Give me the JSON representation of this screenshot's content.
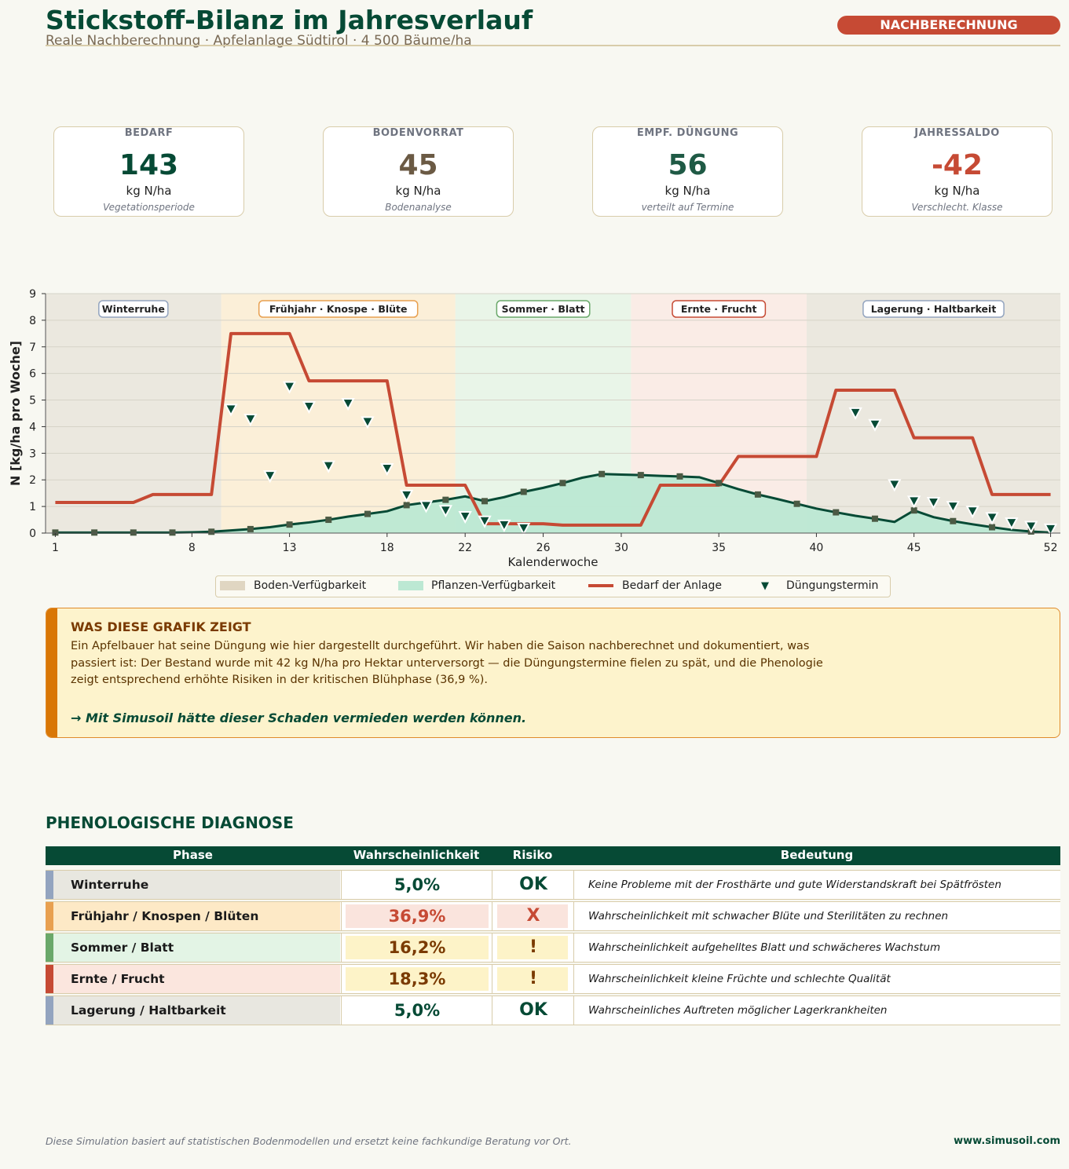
{
  "header": {
    "title": "Stickstoff-Bilanz im Jahresverlauf",
    "subtitle": "Reale Nachberechnung · Apfelanlage Südtirol · 4 500 Bäume/ha",
    "badge": "NACHBERECHNUNG"
  },
  "kpis": [
    {
      "label": "BEDARF",
      "value": "143",
      "unit": "kg N/ha",
      "note": "Vegetationsperiode",
      "color": "#064a35"
    },
    {
      "label": "BODENVORRAT",
      "value": "45",
      "unit": "kg N/ha",
      "note": "Bodenanalyse",
      "color": "#6b5a44"
    },
    {
      "label": "EMPF. DÜNGUNG",
      "value": "56",
      "unit": "kg N/ha",
      "note": "verteilt auf Termine",
      "color": "#1f5a45"
    },
    {
      "label": "JAHRESSALDO",
      "value": "-42",
      "unit": "kg N/ha",
      "note": "Verschlecht. Klasse",
      "color": "#c64a34"
    }
  ],
  "chart_data": {
    "type": "line",
    "xlabel": "Kalenderwoche",
    "ylabel": "N [kg/ha pro Woche]",
    "xlim": [
      1,
      52
    ],
    "ylim": [
      0,
      9
    ],
    "xticks": [
      1,
      8,
      13,
      18,
      22,
      26,
      30,
      35,
      40,
      45,
      52
    ],
    "yticks": [
      0,
      1,
      2,
      3,
      4,
      5,
      6,
      7,
      8,
      9
    ],
    "grid": true,
    "phases": [
      {
        "label": "Winterruhe",
        "from": 0.5,
        "to": 9.5,
        "fill": "#ebe8df",
        "border": "#93a4bf"
      },
      {
        "label": "Frühjahr · Knospe · Blüte",
        "from": 9.5,
        "to": 21.5,
        "fill": "#fbefd8",
        "border": "#e8a050"
      },
      {
        "label": "Sommer · Blatt",
        "from": 21.5,
        "to": 30.5,
        "fill": "#e9f5e8",
        "border": "#6aa86a"
      },
      {
        "label": "Ernte · Frucht",
        "from": 30.5,
        "to": 39.5,
        "fill": "#faece6",
        "border": "#c64a34"
      },
      {
        "label": "Lagerung · Haltbarkeit",
        "from": 39.5,
        "to": 52.5,
        "fill": "#ebe8df",
        "border": "#93a4bf"
      }
    ],
    "x": [
      1,
      2,
      3,
      4,
      5,
      6,
      7,
      8,
      9,
      10,
      11,
      12,
      13,
      14,
      15,
      16,
      17,
      18,
      19,
      20,
      21,
      22,
      23,
      24,
      25,
      26,
      27,
      28,
      29,
      30,
      31,
      32,
      33,
      34,
      35,
      36,
      37,
      38,
      39,
      40,
      41,
      42,
      43,
      44,
      45,
      46,
      47,
      48,
      49,
      50,
      51,
      52
    ],
    "series": [
      {
        "name": "Boden-Verfügbarkeit",
        "color": "#e0d6c2",
        "values": [
          0.02,
          0.02,
          0.02,
          0.02,
          0.02,
          0.02,
          0.02,
          0.03,
          0.05,
          0.1,
          0.15,
          0.22,
          0.32,
          0.4,
          0.5,
          0.62,
          0.72,
          0.82,
          1.05,
          1.15,
          1.25,
          1.38,
          1.2,
          1.35,
          1.55,
          1.7,
          1.88,
          2.08,
          2.22,
          2.2,
          2.18,
          2.15,
          2.13,
          2.1,
          1.88,
          1.65,
          1.45,
          1.28,
          1.1,
          0.92,
          0.78,
          0.65,
          0.54,
          0.42,
          0.85,
          0.6,
          0.45,
          0.33,
          0.22,
          0.12,
          0.06,
          0.02
        ]
      },
      {
        "name": "Pflanzen-Verfügbarkeit",
        "color": "#bce8d3",
        "values": [
          0.02,
          0.02,
          0.02,
          0.02,
          0.02,
          0.02,
          0.02,
          0.03,
          0.05,
          0.1,
          0.15,
          0.22,
          0.32,
          0.4,
          0.5,
          0.62,
          0.72,
          0.82,
          1.05,
          1.15,
          1.25,
          1.38,
          1.2,
          1.35,
          1.55,
          1.7,
          1.88,
          2.08,
          2.22,
          2.2,
          2.18,
          2.15,
          2.13,
          2.1,
          1.88,
          1.65,
          1.45,
          1.28,
          1.1,
          0.92,
          0.78,
          0.65,
          0.54,
          0.42,
          0.85,
          0.6,
          0.45,
          0.33,
          0.22,
          0.12,
          0.06,
          0.02
        ]
      },
      {
        "name": "Bedarf der Anlage",
        "color": "#c64a34",
        "values": [
          1.15,
          1.15,
          1.15,
          1.15,
          1.15,
          1.45,
          1.45,
          1.45,
          1.45,
          7.5,
          7.5,
          7.5,
          7.5,
          5.72,
          5.72,
          5.72,
          5.72,
          5.72,
          1.8,
          1.8,
          1.8,
          1.8,
          0.35,
          0.35,
          0.35,
          0.35,
          0.3,
          0.3,
          0.3,
          0.3,
          0.3,
          1.8,
          1.8,
          1.8,
          1.8,
          2.88,
          2.88,
          2.88,
          2.88,
          2.88,
          5.37,
          5.37,
          5.37,
          5.37,
          3.58,
          3.58,
          3.58,
          3.58,
          1.45,
          1.45,
          1.45,
          1.45
        ]
      },
      {
        "name": "Düngungstermin",
        "color": "#064a35",
        "marker": "triangle-down",
        "points": [
          [
            10,
            4.65
          ],
          [
            11,
            4.28
          ],
          [
            12,
            2.15
          ],
          [
            13,
            5.5
          ],
          [
            14,
            4.75
          ],
          [
            15,
            2.52
          ],
          [
            16,
            4.87
          ],
          [
            17,
            4.18
          ],
          [
            18,
            2.42
          ],
          [
            19,
            1.42
          ],
          [
            20,
            1.02
          ],
          [
            21,
            0.85
          ],
          [
            22,
            0.62
          ],
          [
            23,
            0.45
          ],
          [
            24,
            0.3
          ],
          [
            25,
            0.18
          ],
          [
            42,
            4.52
          ],
          [
            43,
            4.08
          ],
          [
            44,
            1.82
          ],
          [
            45,
            1.2
          ],
          [
            46,
            1.15
          ],
          [
            47,
            1.0
          ],
          [
            48,
            0.82
          ],
          [
            49,
            0.58
          ],
          [
            50,
            0.38
          ],
          [
            51,
            0.25
          ],
          [
            52,
            0.15
          ]
        ]
      }
    ],
    "legend_position": "bottom"
  },
  "legend": [
    {
      "label": "Boden-Verfügbarkeit",
      "color": "#e0d6c2"
    },
    {
      "label": "Pflanzen-Verfügbarkeit",
      "color": "#bce8d3"
    },
    {
      "label": "Bedarf der Anlage",
      "color": "#c64a34"
    },
    {
      "label": "Düngungstermin",
      "color": "#064a35"
    }
  ],
  "info": {
    "heading": "WAS DIESE GRAFIK ZEIGT",
    "lines": [
      "Ein Apfelbauer hat seine Düngung wie hier dargestellt durchgeführt. Wir haben die Saison nachberechnet und dokumentiert, was",
      "passiert ist: Der Bestand wurde mit 42 kg N/ha pro Hektar unterversorgt — die Düngungstermine fielen zu spät, und die Phenologie",
      "zeigt entsprechend erhöhte Risiken in der kritischen Blühphase (36,9 %)."
    ],
    "cta": "→ Mit Simusoil hätte dieser Schaden vermieden werden können."
  },
  "diagnosis": {
    "title": "PHENOLOGISCHE DIAGNOSE",
    "headers": [
      "Phase",
      "Wahrscheinlichkeit",
      "Risiko",
      "Bedeutung"
    ],
    "rows": [
      {
        "phase": "Winterruhe",
        "prob": "5,0%",
        "risk": "OK",
        "meaning": "Keine Probleme mit der Frosthärte und gute Widerstandskraft bei Spätfrösten",
        "stripe": "#93a4bf",
        "phase_bg": "#e8e7e0",
        "prob_color": "#064a35",
        "prob_bg": "",
        "risk_color": "#064a35",
        "risk_bg": ""
      },
      {
        "phase": "Frühjahr / Knospen / Blüten",
        "prob": "36,9%",
        "risk": "X",
        "meaning": "Wahrscheinlichkeit mit schwacher Blüte und Sterilitäten zu rechnen",
        "stripe": "#e8a050",
        "phase_bg": "#fde9c6",
        "prob_color": "#c64a34",
        "prob_bg": "#fae4dd",
        "risk_color": "#c64a34",
        "risk_bg": "#fae4dd"
      },
      {
        "phase": "Sommer / Blatt",
        "prob": "16,2%",
        "risk": "!",
        "meaning": "Wahrscheinlichkeit aufgehelltes Blatt und schwächeres Wachstum",
        "stripe": "#6aa86a",
        "phase_bg": "#e3f4e5",
        "prob_color": "#7a3a00",
        "prob_bg": "#fdf3c8",
        "risk_color": "#7a3a00",
        "risk_bg": "#fdf3c8"
      },
      {
        "phase": "Ernte / Frucht",
        "prob": "18,3%",
        "risk": "!",
        "meaning": "Wahrscheinlichkeit kleine Früchte und schlechte Qualität",
        "stripe": "#c64a34",
        "phase_bg": "#fbe6de",
        "prob_color": "#7a3a00",
        "prob_bg": "#fdf3c8",
        "risk_color": "#7a3a00",
        "risk_bg": "#fdf3c8"
      },
      {
        "phase": "Lagerung / Haltbarkeit",
        "prob": "5,0%",
        "risk": "OK",
        "meaning": "Wahrscheinliches Auftreten möglicher Lagerkrankheiten",
        "stripe": "#93a4bf",
        "phase_bg": "#e8e7e0",
        "prob_color": "#064a35",
        "prob_bg": "",
        "risk_color": "#064a35",
        "risk_bg": ""
      }
    ]
  },
  "footer": {
    "disclaimer": "Diese Simulation basiert auf statistischen Bodenmodellen und ersetzt keine fachkundige Beratung vor Ort.",
    "url": "www.simusoil.com"
  }
}
